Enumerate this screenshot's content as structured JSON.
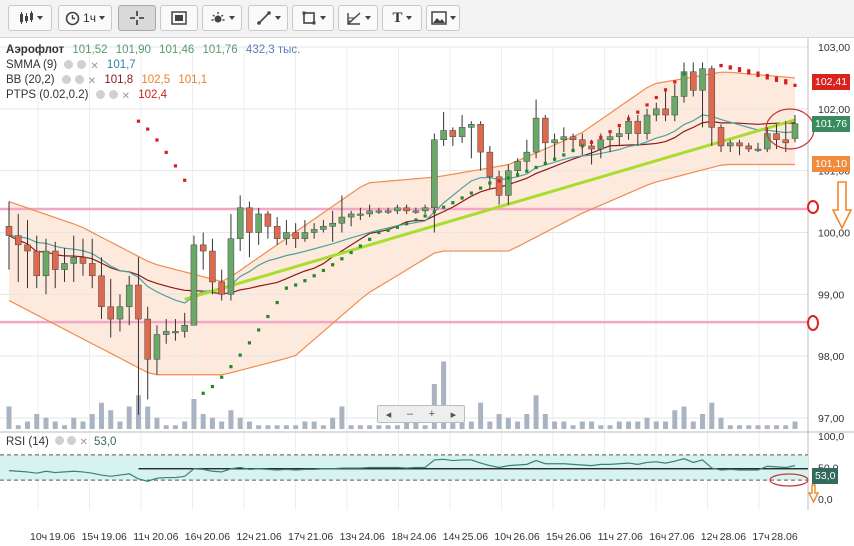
{
  "toolbar": {
    "buttons": [
      {
        "name": "chart-type-button",
        "icon": "candles-icon"
      },
      {
        "name": "interval-button",
        "icon": "clock-icon",
        "label": "1ч"
      },
      {
        "name": "crosshair-button",
        "icon": "crosshair-icon",
        "active": true
      },
      {
        "name": "screen-button",
        "icon": "frame-icon"
      },
      {
        "name": "indicators-button",
        "icon": "gear-icon"
      },
      {
        "name": "line-tool-button",
        "icon": "line-icon"
      },
      {
        "name": "shape-tool-button",
        "icon": "square-icon"
      },
      {
        "name": "fib-tool-button",
        "icon": "fib-icon"
      },
      {
        "name": "text-tool-button",
        "icon": "text-icon",
        "label": "T"
      },
      {
        "name": "image-button",
        "icon": "image-icon"
      }
    ]
  },
  "legend": {
    "ticker": {
      "name": "Аэрофлот",
      "open": "101,52",
      "high": "101,90",
      "low": "101,46",
      "close": "101,76",
      "volume": "432,3 тыс."
    },
    "sma": {
      "name": "SMMA (9)",
      "value": "101,7"
    },
    "bb": {
      "name": "BB (20,2)",
      "mid": "101,8",
      "upper": "102,5",
      "lower": "101,1"
    },
    "ptps": {
      "name": "PTPS (0.02,0.2)",
      "value": "102,4"
    }
  },
  "navigator": {
    "left": "◂",
    "minus": "–",
    "plus": "+",
    "right": "▸"
  },
  "rsi": {
    "name": "RSI (14)",
    "value": "53,0"
  },
  "price_labels": [
    {
      "value": "102,41",
      "color": "#d9231e"
    },
    {
      "value": "101,76",
      "color": "#3a8a5f"
    },
    {
      "value": "101,10",
      "color": "#f08a3c"
    }
  ],
  "rsi_label": {
    "value": "53,0",
    "color": "#33695e"
  },
  "chart_data": {
    "type": "candlestick",
    "title": "Аэрофлот",
    "y_ticks": [
      "103,00",
      "102,00",
      "101,00",
      "100,00",
      "99,00",
      "98,00",
      "97,00"
    ],
    "ylim": [
      96.9,
      103.05
    ],
    "rsi_ticks": [
      "100,0",
      "50,0",
      "0,0"
    ],
    "x_ticks": [
      "10ч",
      "19.06",
      "15ч",
      "19.06",
      "11ч",
      "20.06",
      "16ч",
      "20.06",
      "12ч",
      "21.06",
      "17ч",
      "21.06",
      "13ч",
      "24.06",
      "18ч",
      "24.06",
      "14ч",
      "25.06",
      "10ч",
      "26.06",
      "15ч",
      "26.06",
      "11ч",
      "27.06",
      "16ч",
      "27.06",
      "12ч",
      "28.06",
      "17ч",
      "28.06"
    ],
    "candles": [
      [
        100.1,
        99.95,
        100.5,
        99.4
      ],
      [
        99.95,
        99.8,
        100.3,
        99.2
      ],
      [
        99.8,
        99.7,
        100.2,
        99.1
      ],
      [
        99.7,
        99.3,
        99.95,
        99.1
      ],
      [
        99.3,
        99.7,
        99.9,
        99.0
      ],
      [
        99.7,
        99.4,
        99.85,
        99.1
      ],
      [
        99.4,
        99.5,
        99.75,
        99.2
      ],
      [
        99.5,
        99.6,
        99.95,
        99.2
      ],
      [
        99.6,
        99.5,
        99.9,
        99.3
      ],
      [
        99.5,
        99.3,
        99.9,
        99.1
      ],
      [
        99.3,
        98.8,
        99.6,
        98.6
      ],
      [
        98.8,
        98.6,
        99.25,
        98.3
      ],
      [
        98.6,
        98.8,
        99.0,
        98.4
      ],
      [
        98.8,
        99.15,
        99.3,
        98.5
      ],
      [
        99.15,
        98.6,
        99.6,
        97.05
      ],
      [
        98.6,
        97.95,
        98.8,
        97.3
      ],
      [
        97.95,
        98.35,
        98.5,
        97.7
      ],
      [
        98.35,
        98.4,
        98.6,
        98.2
      ],
      [
        98.4,
        98.4,
        98.6,
        98.25
      ],
      [
        98.4,
        98.5,
        98.7,
        98.3
      ],
      [
        98.5,
        99.8,
        99.95,
        98.5
      ],
      [
        99.8,
        99.7,
        100.0,
        99.4
      ],
      [
        99.7,
        99.2,
        99.9,
        99.0
      ],
      [
        99.2,
        99.0,
        99.4,
        98.9
      ],
      [
        99.0,
        99.9,
        100.3,
        98.9
      ],
      [
        99.9,
        100.4,
        100.6,
        99.7
      ],
      [
        100.4,
        100.0,
        100.5,
        99.6
      ],
      [
        100.0,
        100.3,
        100.4,
        99.8
      ],
      [
        100.3,
        100.1,
        100.35,
        99.9
      ],
      [
        100.1,
        99.9,
        100.25,
        99.8
      ],
      [
        99.9,
        100.0,
        100.2,
        99.8
      ],
      [
        100.0,
        99.9,
        100.15,
        99.75
      ],
      [
        99.9,
        100.0,
        100.2,
        99.85
      ],
      [
        100.0,
        100.05,
        100.15,
        99.9
      ],
      [
        100.05,
        100.1,
        100.2,
        100.0
      ],
      [
        100.1,
        100.15,
        100.35,
        99.85
      ],
      [
        100.15,
        100.25,
        100.6,
        100.0
      ],
      [
        100.25,
        100.3,
        100.35,
        100.1
      ],
      [
        100.3,
        100.3,
        100.4,
        100.2
      ],
      [
        100.3,
        100.35,
        100.45,
        100.25
      ],
      [
        100.35,
        100.35,
        100.4,
        100.3
      ],
      [
        100.35,
        100.35,
        100.4,
        100.3
      ],
      [
        100.35,
        100.4,
        100.45,
        100.3
      ],
      [
        100.4,
        100.35,
        100.45,
        100.3
      ],
      [
        100.35,
        100.35,
        100.4,
        100.3
      ],
      [
        100.35,
        100.4,
        100.45,
        100.3
      ],
      [
        100.4,
        101.5,
        101.6,
        100.0
      ],
      [
        101.5,
        101.65,
        101.95,
        101.4
      ],
      [
        101.65,
        101.55,
        101.7,
        101.4
      ],
      [
        101.55,
        101.7,
        101.9,
        101.45
      ],
      [
        101.7,
        101.75,
        101.8,
        101.2
      ],
      [
        101.75,
        101.3,
        101.8,
        101.0
      ],
      [
        101.3,
        100.9,
        101.4,
        100.7
      ],
      [
        100.9,
        100.6,
        101.0,
        100.45
      ],
      [
        100.6,
        101.0,
        101.1,
        100.45
      ],
      [
        101.0,
        101.15,
        101.2,
        100.9
      ],
      [
        101.15,
        101.3,
        101.5,
        101.0
      ],
      [
        101.3,
        101.85,
        102.15,
        101.2
      ],
      [
        101.85,
        101.45,
        101.9,
        101.1
      ],
      [
        101.45,
        101.5,
        101.6,
        101.2
      ],
      [
        101.5,
        101.55,
        101.7,
        101.3
      ],
      [
        101.55,
        101.5,
        101.6,
        101.3
      ],
      [
        101.5,
        101.4,
        101.6,
        101.25
      ],
      [
        101.4,
        101.35,
        101.5,
        101.1
      ],
      [
        101.35,
        101.5,
        101.6,
        101.2
      ],
      [
        101.5,
        101.55,
        101.6,
        101.3
      ],
      [
        101.55,
        101.6,
        101.7,
        101.4
      ],
      [
        101.6,
        101.8,
        101.9,
        101.5
      ],
      [
        101.8,
        101.6,
        101.9,
        101.4
      ],
      [
        101.6,
        101.9,
        102.0,
        101.5
      ],
      [
        101.9,
        102.0,
        102.1,
        101.8
      ],
      [
        102.0,
        101.9,
        102.3,
        101.8
      ],
      [
        101.9,
        102.2,
        102.4,
        101.8
      ],
      [
        102.2,
        102.6,
        102.75,
        102.1
      ],
      [
        102.6,
        102.3,
        102.75,
        102.2
      ],
      [
        102.3,
        102.65,
        102.75,
        101.7
      ],
      [
        102.65,
        101.7,
        102.7,
        101.4
      ],
      [
        101.7,
        101.4,
        101.75,
        101.3
      ],
      [
        101.4,
        101.45,
        101.5,
        101.3
      ],
      [
        101.45,
        101.4,
        101.5,
        101.25
      ],
      [
        101.4,
        101.35,
        101.45,
        101.3
      ],
      [
        101.35,
        101.35,
        101.45,
        101.3
      ],
      [
        101.35,
        101.6,
        101.7,
        101.3
      ],
      [
        101.6,
        101.5,
        101.75,
        101.35
      ],
      [
        101.5,
        101.45,
        101.8,
        101.3
      ],
      [
        101.52,
        101.76,
        101.9,
        101.46
      ]
    ],
    "volume": [
      0.3,
      0.05,
      0.1,
      0.2,
      0.15,
      0.1,
      0.05,
      0.15,
      0.1,
      0.2,
      0.35,
      0.25,
      0.1,
      0.3,
      0.45,
      0.3,
      0.15,
      0.05,
      0.05,
      0.1,
      0.4,
      0.2,
      0.15,
      0.1,
      0.25,
      0.15,
      0.1,
      0.05,
      0.05,
      0.05,
      0.05,
      0.05,
      0.1,
      0.1,
      0.05,
      0.15,
      0.3,
      0.05,
      0.05,
      0.05,
      0.05,
      0.05,
      0.05,
      0.1,
      0.15,
      0.05,
      0.6,
      0.9,
      0.25,
      0.15,
      0.1,
      0.35,
      0.1,
      0.2,
      0.15,
      0.1,
      0.2,
      0.45,
      0.2,
      0.1,
      0.1,
      0.05,
      0.1,
      0.1,
      0.05,
      0.05,
      0.1,
      0.1,
      0.1,
      0.15,
      0.1,
      0.1,
      0.25,
      0.3,
      0.1,
      0.2,
      0.35,
      0.15,
      0.05,
      0.05,
      0.05,
      0.05,
      0.05,
      0.05,
      0.05,
      0.1
    ],
    "rsi_values": [
      45,
      44,
      43,
      41,
      44,
      42,
      43,
      44,
      43,
      41,
      38,
      36,
      38,
      40,
      32,
      28,
      33,
      34,
      34,
      36,
      48,
      47,
      44,
      43,
      48,
      50,
      47,
      48,
      47,
      46,
      47,
      46,
      47,
      47,
      48,
      48,
      49,
      49,
      49,
      50,
      50,
      50,
      50,
      49,
      50,
      50,
      62,
      63,
      61,
      62,
      62,
      57,
      53,
      50,
      53,
      54,
      55,
      61,
      56,
      56,
      56,
      55,
      54,
      53,
      55,
      55,
      56,
      57,
      55,
      58,
      59,
      57,
      60,
      64,
      58,
      62,
      49,
      46,
      47,
      46,
      46,
      46,
      52,
      51,
      50,
      53
    ],
    "bb_upper": [
      100.5,
      100.1,
      99.5,
      99.2,
      100.0,
      100.8,
      100.9,
      101.1,
      101.6,
      102.4,
      102.6,
      102.5
    ],
    "bb_lower": [
      98.9,
      98.3,
      97.7,
      97.7,
      98.0,
      99.0,
      99.7,
      99.7,
      100.3,
      100.8,
      101.1,
      101.1
    ],
    "psar": [
      [
        14,
        101.8
      ],
      [
        20,
        100.6
      ],
      [
        21,
        97.4
      ],
      [
        30,
        99.1
      ],
      [
        40,
        100.0
      ],
      [
        52,
        100.8
      ],
      [
        62,
        101.4
      ],
      [
        74,
        102.7
      ],
      [
        77,
        102.7
      ],
      [
        85,
        102.41
      ]
    ],
    "levels": [
      100.38,
      98.55
    ],
    "trendline": [
      [
        19,
        98.92
      ],
      [
        85,
        101.82
      ]
    ],
    "rsi_ref": [
      70,
      30,
      48
    ]
  }
}
